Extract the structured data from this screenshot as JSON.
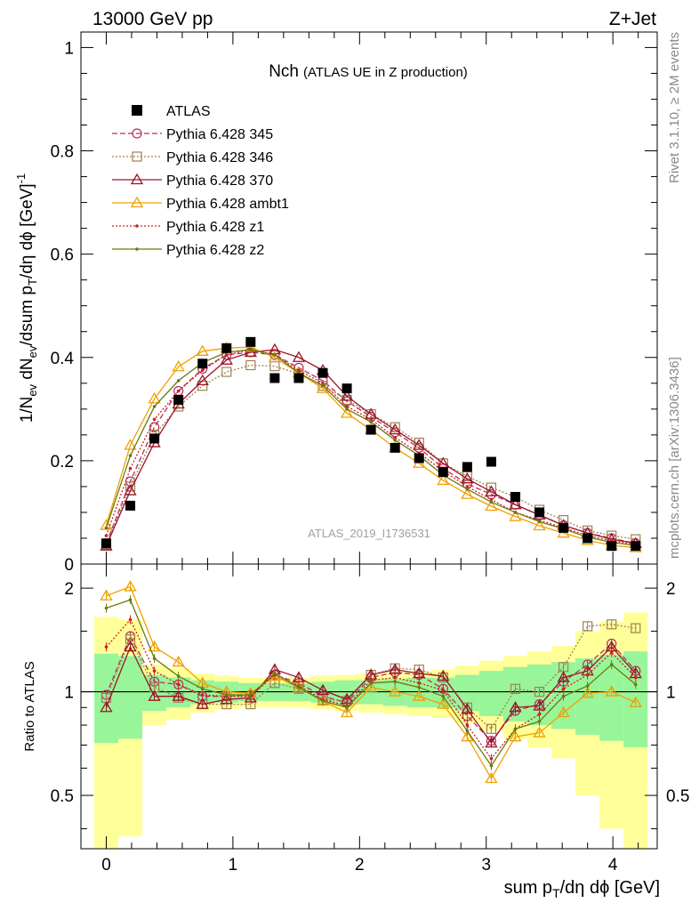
{
  "header": {
    "energy_label": "13000 GeV pp",
    "process_label": "Z+Jet"
  },
  "side_labels": {
    "rivet": "Rivet 3.1.10, ≥ 2M events",
    "mcplots": "mcplots.cern.ch [arXiv:1306.3436]"
  },
  "chart_data": [
    {
      "type": "line",
      "title_main": "Nch",
      "title_sub": "(ATLAS UE in Z production)",
      "watermark": "ATLAS_2019_I1736531",
      "ylabel": "1/N_ev dN_ev/dsum p_T/dη dϕ [GeV]^-1",
      "xlim": [
        -0.2,
        4.35
      ],
      "ylim": [
        0,
        1.03
      ],
      "yticks": [
        0,
        0.2,
        0.4,
        0.6,
        0.8,
        1
      ],
      "ytick_labels": [
        "0",
        "0.2",
        "0.4",
        "0.6",
        "0.8",
        "1"
      ],
      "legend_position": "top-left",
      "x": [
        0,
        0.19,
        0.38,
        0.57,
        0.76,
        0.95,
        1.14,
        1.33,
        1.52,
        1.71,
        1.9,
        2.09,
        2.28,
        2.47,
        2.66,
        2.85,
        3.04,
        3.23,
        3.42,
        3.61,
        3.8,
        3.99,
        4.18
      ],
      "data": {
        "name": "ATLAS",
        "values": [
          0.04,
          0.113,
          0.243,
          0.318,
          0.388,
          0.418,
          0.43,
          0.36,
          0.36,
          0.37,
          0.34,
          0.26,
          0.225,
          0.205,
          0.178,
          0.188,
          0.198,
          0.13,
          0.1,
          0.07,
          0.05,
          0.035,
          0.035
        ]
      },
      "series": [
        {
          "name": "Pythia 6.428 345",
          "color": "#b03060",
          "dash": "6,3",
          "marker": "circle",
          "values": [
            0.04,
            0.16,
            0.265,
            0.335,
            0.378,
            0.405,
            0.41,
            0.405,
            0.38,
            0.355,
            0.315,
            0.285,
            0.255,
            0.225,
            0.185,
            0.155,
            0.135,
            0.115,
            0.095,
            0.075,
            0.06,
            0.05,
            0.04
          ]
        },
        {
          "name": "Pythia 6.428 346",
          "color": "#a08050",
          "dash": "2,2",
          "marker": "square",
          "values": [
            0.038,
            0.15,
            0.25,
            0.305,
            0.345,
            0.372,
            0.385,
            0.383,
            0.368,
            0.345,
            0.318,
            0.29,
            0.265,
            0.235,
            0.195,
            0.17,
            0.148,
            0.13,
            0.105,
            0.085,
            0.065,
            0.055,
            0.048
          ]
        },
        {
          "name": "Pythia 6.428 370",
          "color": "#9c1428",
          "dash": "",
          "marker": "triangle",
          "values": [
            0.035,
            0.142,
            0.235,
            0.31,
            0.355,
            0.395,
            0.41,
            0.415,
            0.4,
            0.375,
            0.325,
            0.29,
            0.26,
            0.23,
            0.195,
            0.165,
            0.14,
            0.115,
            0.095,
            0.075,
            0.06,
            0.048,
            0.04
          ]
        },
        {
          "name": "Pythia 6.428 ambt1",
          "color": "#f0a000",
          "dash": "",
          "marker": "triangle",
          "values": [
            0.075,
            0.23,
            0.32,
            0.382,
            0.412,
            0.418,
            0.42,
            0.4,
            0.37,
            0.34,
            0.292,
            0.26,
            0.225,
            0.195,
            0.162,
            0.135,
            0.112,
            0.092,
            0.074,
            0.06,
            0.046,
            0.036,
            0.032
          ]
        },
        {
          "name": "Pythia 6.428 z1",
          "color": "#d02020",
          "dash": "2,2",
          "marker": "dot",
          "values": [
            0.055,
            0.185,
            0.28,
            0.335,
            0.375,
            0.405,
            0.415,
            0.405,
            0.375,
            0.35,
            0.305,
            0.28,
            0.245,
            0.215,
            0.18,
            0.15,
            0.125,
            0.1,
            0.085,
            0.07,
            0.055,
            0.045,
            0.038
          ]
        },
        {
          "name": "Pythia 6.428 z2",
          "color": "#6b7a10",
          "dash": "",
          "marker": "dot",
          "values": [
            0.07,
            0.21,
            0.305,
            0.355,
            0.39,
            0.41,
            0.415,
            0.405,
            0.37,
            0.345,
            0.3,
            0.275,
            0.24,
            0.21,
            0.172,
            0.145,
            0.12,
            0.1,
            0.082,
            0.068,
            0.052,
            0.042,
            0.036
          ]
        }
      ]
    },
    {
      "type": "line",
      "ylabel": "Ratio to ATLAS",
      "xlabel": "sum p_T/dη dϕ [GeV]",
      "xlim": [
        -0.2,
        4.35
      ],
      "ylim": [
        0.35,
        2.35
      ],
      "xticks": [
        0,
        1,
        2,
        3,
        4
      ],
      "xtick_labels": [
        "0",
        "1",
        "2",
        "3",
        "4"
      ],
      "yticks": [
        0.5,
        1,
        2
      ],
      "ytick_labels": [
        "0.5",
        "1",
        "2"
      ],
      "band_inner_halfwidth": [
        0.29,
        0.27,
        0.12,
        0.1,
        0.08,
        0.07,
        0.06,
        0.06,
        0.06,
        0.07,
        0.08,
        0.08,
        0.09,
        0.1,
        0.1,
        0.12,
        0.15,
        0.18,
        0.2,
        0.22,
        0.25,
        0.28,
        0.31
      ],
      "band_outer_halfwidth": [
        0.65,
        0.62,
        0.2,
        0.17,
        0.13,
        0.11,
        0.1,
        0.1,
        0.1,
        0.11,
        0.12,
        0.13,
        0.14,
        0.15,
        0.16,
        0.19,
        0.23,
        0.27,
        0.31,
        0.36,
        0.5,
        0.6,
        0.7
      ],
      "series": [
        {
          "name": "Pythia 6.428 345",
          "values": [
            0.98,
            1.45,
            1.07,
            1.05,
            0.97,
            0.97,
            0.98,
            1.12,
            1.06,
            0.97,
            0.93,
            1.1,
            1.14,
            1.12,
            1.02,
            0.85,
            0.72,
            0.88,
            0.92,
            1.07,
            1.2,
            1.38,
            1.15
          ]
        },
        {
          "name": "Pythia 6.428 346",
          "values": [
            0.96,
            1.42,
            1.03,
            0.96,
            0.92,
            0.92,
            0.92,
            1.06,
            1.02,
            0.95,
            0.94,
            1.12,
            1.17,
            1.16,
            1.1,
            0.9,
            0.78,
            1.02,
            1.0,
            1.18,
            1.55,
            1.57,
            1.53
          ]
        },
        {
          "name": "Pythia 6.428 370",
          "values": [
            0.9,
            1.35,
            0.97,
            0.97,
            0.92,
            0.95,
            0.96,
            1.16,
            1.1,
            1.01,
            0.95,
            1.12,
            1.16,
            1.13,
            1.11,
            0.89,
            0.71,
            0.9,
            0.91,
            1.1,
            1.15,
            1.35,
            1.13
          ]
        },
        {
          "name": "Pythia 6.428 ambt1",
          "values": [
            1.9,
            2.02,
            1.35,
            1.22,
            1.06,
            1.0,
            0.99,
            1.11,
            1.03,
            0.94,
            0.87,
            1.03,
            1.0,
            0.97,
            0.92,
            0.74,
            0.56,
            0.74,
            0.76,
            0.87,
            0.99,
            1.0,
            0.93
          ]
        },
        {
          "name": "Pythia 6.428 z1",
          "values": [
            1.35,
            1.62,
            1.15,
            1.05,
            0.98,
            0.97,
            0.97,
            1.12,
            1.04,
            0.95,
            0.91,
            1.08,
            1.1,
            1.06,
            1.01,
            0.8,
            0.64,
            0.78,
            0.86,
            1.02,
            1.12,
            1.3,
            1.1
          ]
        },
        {
          "name": "Pythia 6.428 z2",
          "values": [
            1.75,
            1.85,
            1.25,
            1.11,
            1.02,
            0.98,
            0.98,
            1.13,
            1.03,
            0.94,
            0.9,
            1.06,
            1.07,
            1.03,
            0.97,
            0.77,
            0.61,
            0.78,
            0.82,
            0.97,
            1.04,
            1.2,
            1.05
          ]
        }
      ]
    }
  ]
}
